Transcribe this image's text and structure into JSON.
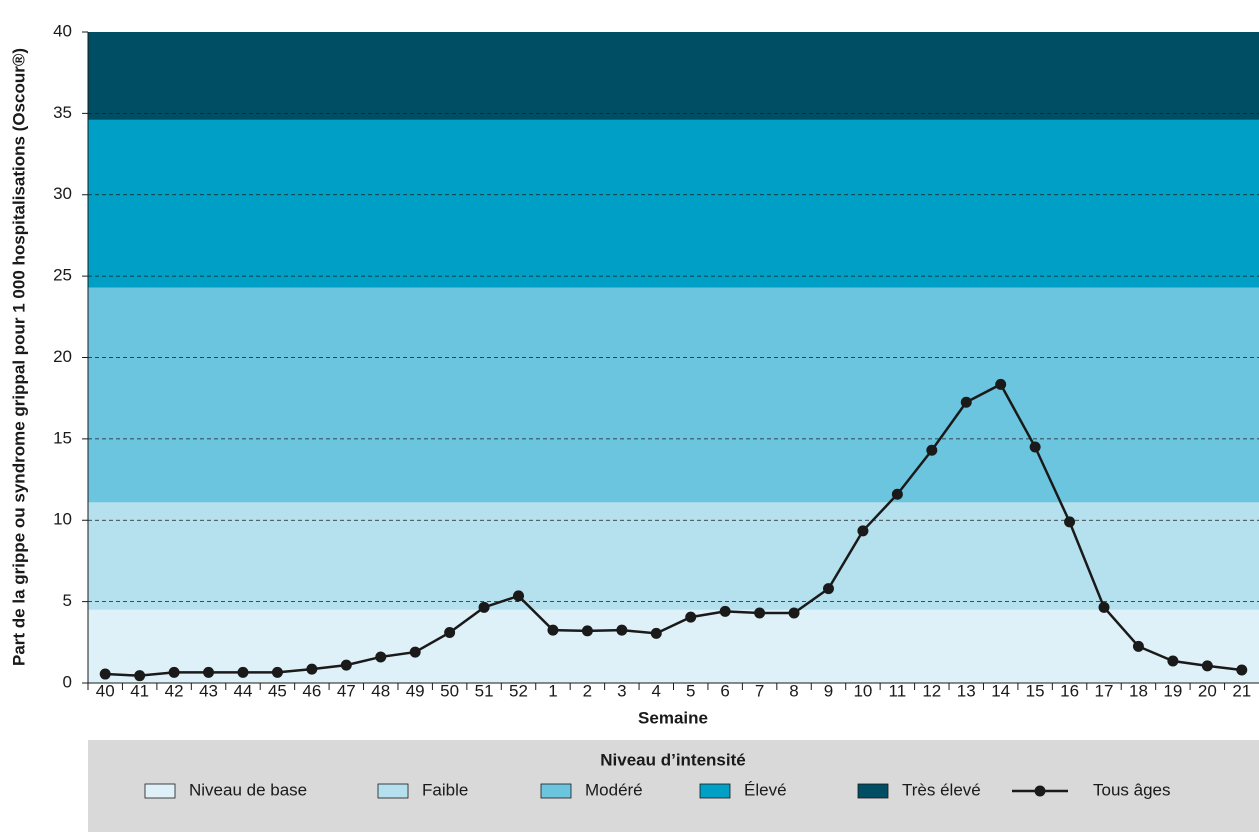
{
  "chart_data": {
    "type": "line",
    "x_label": "Semaine",
    "y_label": "Part de la grippe ou syndrome grippal pour 1 000 hospitalisations (Oscour®)",
    "categories": [
      "40",
      "41",
      "42",
      "43",
      "44",
      "45",
      "46",
      "47",
      "48",
      "49",
      "50",
      "51",
      "52",
      "1",
      "2",
      "3",
      "4",
      "5",
      "6",
      "7",
      "8",
      "9",
      "10",
      "11",
      "12",
      "13",
      "14",
      "15",
      "16",
      "17",
      "18",
      "19",
      "20",
      "21"
    ],
    "series": [
      {
        "name": "Tous âges",
        "color": "#1a1a1a",
        "values": [
          0.55,
          0.45,
          0.65,
          0.65,
          0.65,
          0.65,
          0.85,
          1.1,
          1.6,
          1.9,
          3.1,
          4.65,
          5.35,
          3.25,
          3.2,
          3.25,
          3.05,
          4.05,
          4.4,
          4.3,
          4.3,
          5.8,
          9.35,
          11.6,
          14.3,
          17.25,
          18.35,
          14.5,
          9.9,
          4.65,
          2.25,
          1.35,
          1.05,
          0.8
        ]
      }
    ],
    "bands": [
      {
        "name": "Niveau de base",
        "color": "#dff1f8",
        "from": 0,
        "to": 4.5
      },
      {
        "name": "Faible",
        "color": "#b5e0ee",
        "from": 4.5,
        "to": 11.1
      },
      {
        "name": "Modéré",
        "color": "#6cc5df",
        "from": 11.1,
        "to": 24.3
      },
      {
        "name": "Élevé",
        "color": "#00a0c6",
        "from": 24.3,
        "to": 34.6
      },
      {
        "name": "Très élevé",
        "color": "#004e63",
        "from": 34.6,
        "to": 40
      }
    ],
    "legend_title": "Niveau d’intensité",
    "ylim": [
      0,
      40
    ],
    "yticks": [
      0,
      5,
      10,
      15,
      20,
      25,
      30,
      35,
      40
    ],
    "grid": true
  }
}
